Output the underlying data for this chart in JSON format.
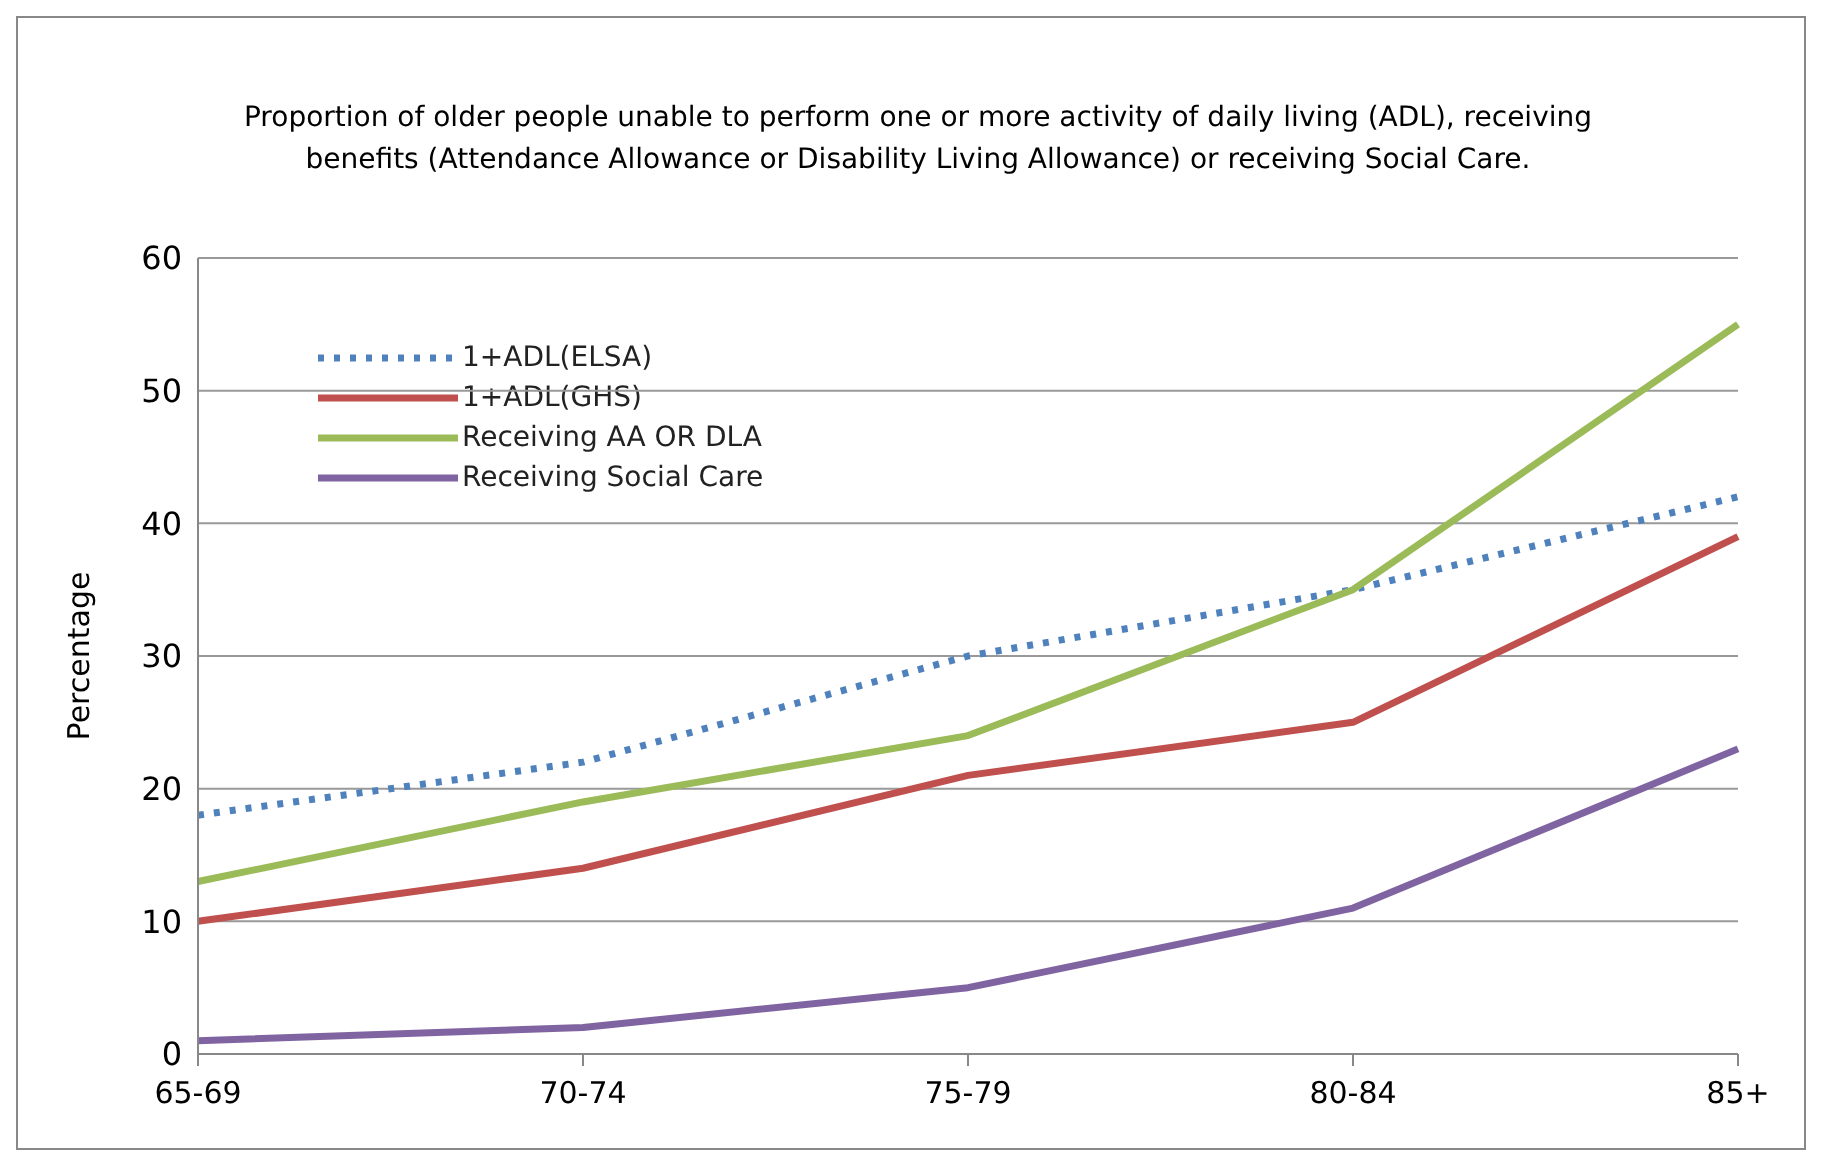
{
  "chart_data": {
    "type": "line",
    "title": "Proportion of older people unable to perform one or more activity of daily living (ADL), receiving benefits (Attendance Allowance or Disability Living Allowance) or receiving Social Care.",
    "ylabel": "Percentage",
    "categories": [
      "65-69",
      "70-74",
      "75-79",
      "80-84",
      "85+"
    ],
    "series": [
      {
        "name": "1+ADL(ELSA)",
        "color": "#4f81bd",
        "line_style": "dotted",
        "values": [
          18,
          22,
          30,
          35,
          42
        ]
      },
      {
        "name": "1+ADL(GHS)",
        "color": "#c0504d",
        "values": [
          10,
          14,
          21,
          25,
          39
        ]
      },
      {
        "name": "Receiving AA OR DLA",
        "color": "#9bbb59",
        "values": [
          13,
          19,
          24,
          35,
          55
        ]
      },
      {
        "name": "Receiving Social Care",
        "color": "#8064a2",
        "values": [
          1,
          2,
          5,
          11,
          23
        ]
      }
    ],
    "ylim": [
      0,
      60
    ],
    "yticks": [
      0,
      10,
      20,
      30,
      40,
      50,
      60
    ],
    "grid": "y",
    "legend": "top left",
    "marker": "none"
  }
}
